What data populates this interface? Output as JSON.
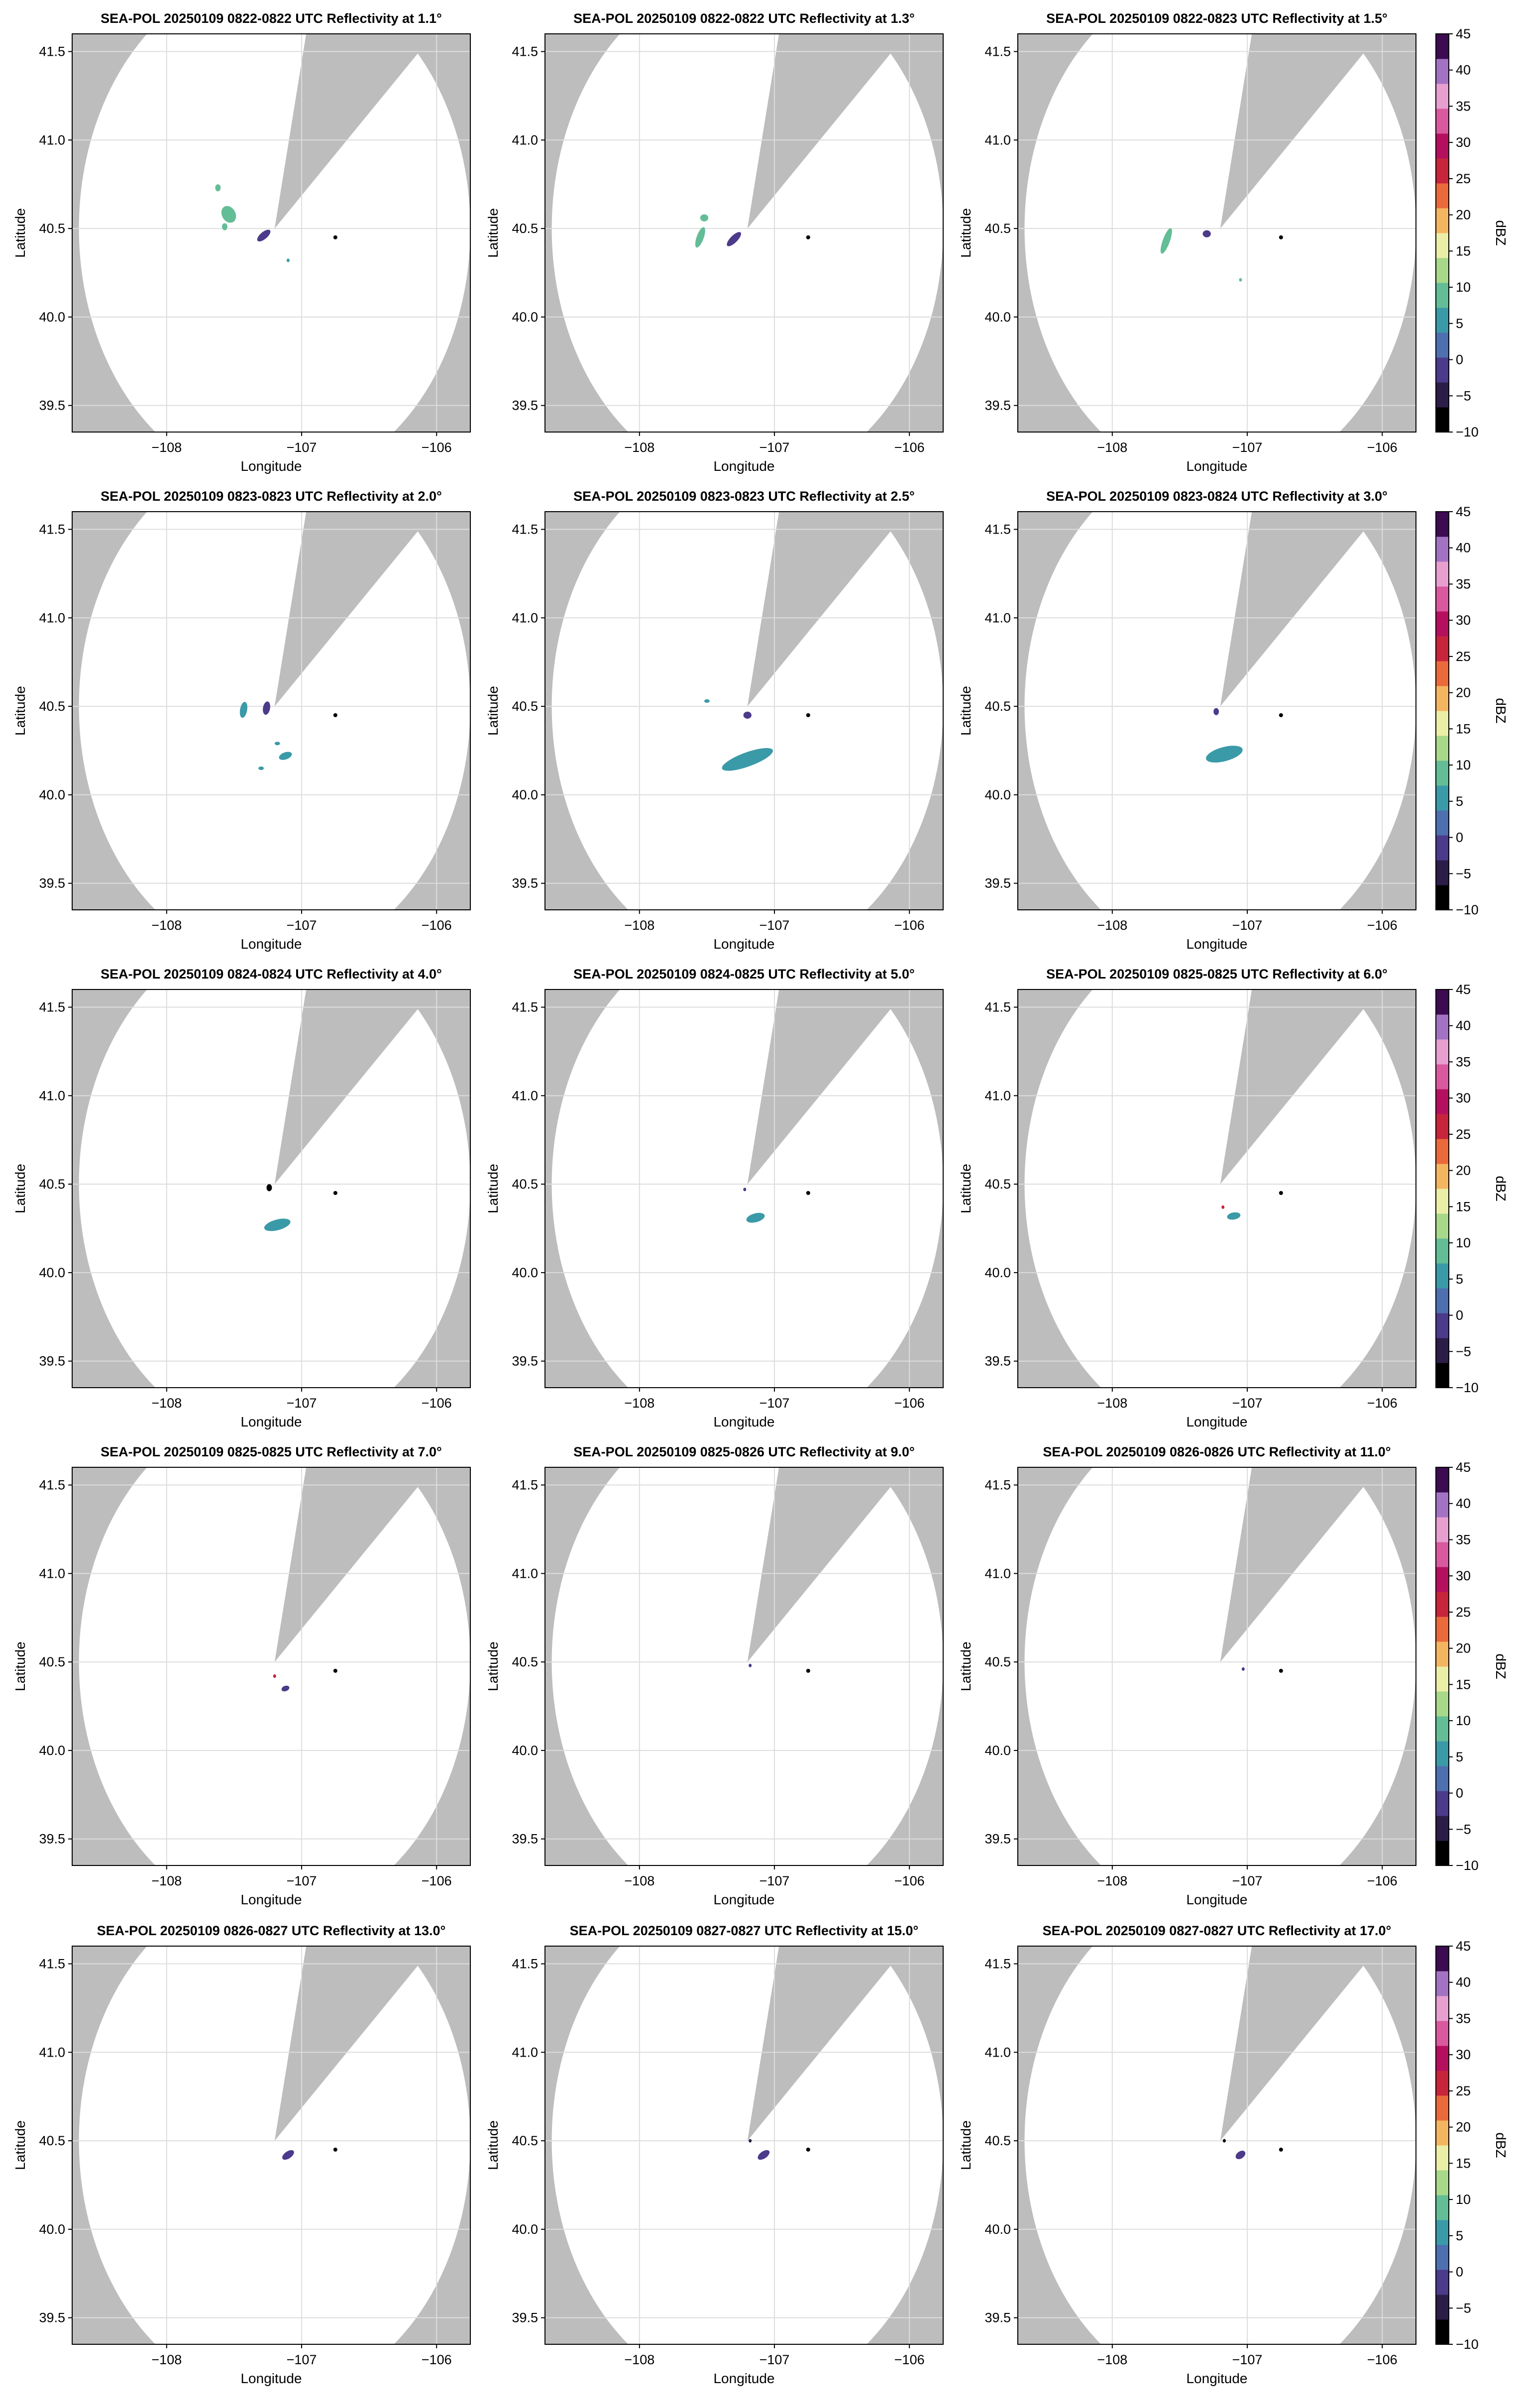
{
  "figure": {
    "radar_site": {
      "lon": -107.2,
      "lat": 40.5
    },
    "marker": {
      "lon": -106.75,
      "lat": 40.45
    },
    "range_radius_deg": 1.45,
    "blocked_sectors_deg_cw_from_north": [
      [
        12,
        47
      ]
    ],
    "colors": {
      "mask": "#bdbdbd",
      "sweep": "#ffffff",
      "grid": "#dddddd",
      "marker": "#000000"
    }
  },
  "chart_data": [
    {
      "type": "heatmap",
      "title": "SEA-POL 20250109 0822-0822 UTC Reflectivity at 1.1°",
      "xlabel": "Longitude",
      "ylabel": "Latitude",
      "xlim": [
        -108.7,
        -105.75
      ],
      "ylim": [
        39.35,
        41.6
      ],
      "xticks": [
        "−108",
        "−107",
        "−106"
      ],
      "yticks": [
        "39.5",
        "40.0",
        "40.5",
        "41.0",
        "41.5"
      ],
      "echoes": [
        {
          "lon": -107.54,
          "lat": 40.58,
          "len": 0.05,
          "wid": 0.05,
          "ang": 30,
          "dbz": 9
        },
        {
          "lon": -107.57,
          "lat": 40.51,
          "len": 0.02,
          "wid": 0.02,
          "ang": 0,
          "dbz": 9
        },
        {
          "lon": -107.62,
          "lat": 40.73,
          "len": 0.02,
          "wid": 0.02,
          "ang": 0,
          "dbz": 9
        },
        {
          "lon": -107.28,
          "lat": 40.46,
          "len": 0.06,
          "wid": 0.02,
          "ang": 40,
          "dbz": 0
        },
        {
          "lon": -107.1,
          "lat": 40.32,
          "len": 0.01,
          "wid": 0.01,
          "ang": 0,
          "dbz": 5
        }
      ]
    },
    {
      "type": "heatmap",
      "title": "SEA-POL 20250109 0822-0822 UTC Reflectivity at 1.3°",
      "xlabel": "Longitude",
      "ylabel": "Latitude",
      "xlim": [
        -108.7,
        -105.75
      ],
      "ylim": [
        39.35,
        41.6
      ],
      "xticks": [
        "−108",
        "−107",
        "−106"
      ],
      "yticks": [
        "39.5",
        "40.0",
        "40.5",
        "41.0",
        "41.5"
      ],
      "echoes": [
        {
          "lon": -107.55,
          "lat": 40.45,
          "len": 0.08,
          "wid": 0.02,
          "ang": 70,
          "dbz": 9
        },
        {
          "lon": -107.52,
          "lat": 40.56,
          "len": 0.03,
          "wid": 0.02,
          "ang": 0,
          "dbz": 9
        },
        {
          "lon": -107.3,
          "lat": 40.44,
          "len": 0.07,
          "wid": 0.02,
          "ang": 45,
          "dbz": 0
        }
      ]
    },
    {
      "type": "heatmap",
      "title": "SEA-POL 20250109 0822-0823 UTC Reflectivity at 1.5°",
      "xlabel": "Longitude",
      "ylabel": "Latitude",
      "xlim": [
        -108.7,
        -105.75
      ],
      "ylim": [
        39.35,
        41.6
      ],
      "xticks": [
        "−108",
        "−107",
        "−106"
      ],
      "yticks": [
        "39.5",
        "40.0",
        "40.5",
        "41.0",
        "41.5"
      ],
      "echoes": [
        {
          "lon": -107.6,
          "lat": 40.43,
          "len": 0.1,
          "wid": 0.02,
          "ang": 70,
          "dbz": 9
        },
        {
          "lon": -107.3,
          "lat": 40.47,
          "len": 0.03,
          "wid": 0.02,
          "ang": 0,
          "dbz": 0
        },
        {
          "lon": -107.05,
          "lat": 40.21,
          "len": 0.01,
          "wid": 0.01,
          "ang": 0,
          "dbz": 9
        }
      ]
    },
    {
      "type": "heatmap",
      "title": "SEA-POL 20250109 0823-0823 UTC Reflectivity at 2.0°",
      "xlabel": "Longitude",
      "ylabel": "Latitude",
      "xlim": [
        -108.7,
        -105.75
      ],
      "ylim": [
        39.35,
        41.6
      ],
      "xticks": [
        "−108",
        "−107",
        "−106"
      ],
      "yticks": [
        "39.5",
        "40.0",
        "40.5",
        "41.0",
        "41.5"
      ],
      "echoes": [
        {
          "lon": -107.43,
          "lat": 40.48,
          "len": 0.06,
          "wid": 0.02,
          "ang": 80,
          "dbz": 6
        },
        {
          "lon": -107.26,
          "lat": 40.49,
          "len": 0.05,
          "wid": 0.02,
          "ang": 80,
          "dbz": 0
        },
        {
          "lon": -107.12,
          "lat": 40.22,
          "len": 0.05,
          "wid": 0.02,
          "ang": 20,
          "dbz": 7
        },
        {
          "lon": -107.18,
          "lat": 40.29,
          "len": 0.02,
          "wid": 0.01,
          "ang": 0,
          "dbz": 7
        },
        {
          "lon": -107.3,
          "lat": 40.15,
          "len": 0.02,
          "wid": 0.01,
          "ang": 0,
          "dbz": 7
        }
      ]
    },
    {
      "type": "heatmap",
      "title": "SEA-POL 20250109 0823-0823 UTC Reflectivity at 2.5°",
      "xlabel": "Longitude",
      "ylabel": "Latitude",
      "xlim": [
        -108.7,
        -105.75
      ],
      "ylim": [
        39.35,
        41.6
      ],
      "xticks": [
        "−108",
        "−107",
        "−106"
      ],
      "yticks": [
        "39.5",
        "40.0",
        "40.5",
        "41.0",
        "41.5"
      ],
      "echoes": [
        {
          "lon": -107.2,
          "lat": 40.2,
          "len": 0.2,
          "wid": 0.04,
          "ang": 20,
          "dbz": 7
        },
        {
          "lon": -107.2,
          "lat": 40.45,
          "len": 0.03,
          "wid": 0.02,
          "ang": 0,
          "dbz": 0
        },
        {
          "lon": -107.5,
          "lat": 40.53,
          "len": 0.02,
          "wid": 0.01,
          "ang": 0,
          "dbz": 7
        }
      ]
    },
    {
      "type": "heatmap",
      "title": "SEA-POL 20250109 0823-0824 UTC Reflectivity at 3.0°",
      "xlabel": "Longitude",
      "ylabel": "Latitude",
      "xlim": [
        -108.7,
        -105.75
      ],
      "ylim": [
        39.35,
        41.6
      ],
      "xticks": [
        "−108",
        "−107",
        "−106"
      ],
      "yticks": [
        "39.5",
        "40.0",
        "40.5",
        "41.0",
        "41.5"
      ],
      "echoes": [
        {
          "lon": -107.17,
          "lat": 40.23,
          "len": 0.14,
          "wid": 0.04,
          "ang": 15,
          "dbz": 7
        },
        {
          "lon": -107.23,
          "lat": 40.47,
          "len": 0.02,
          "wid": 0.02,
          "ang": 0,
          "dbz": 0
        }
      ]
    },
    {
      "type": "heatmap",
      "title": "SEA-POL 20250109 0824-0824 UTC Reflectivity at 4.0°",
      "xlabel": "Longitude",
      "ylabel": "Latitude",
      "xlim": [
        -108.7,
        -105.75
      ],
      "ylim": [
        39.35,
        41.6
      ],
      "xticks": [
        "−108",
        "−107",
        "−106"
      ],
      "yticks": [
        "39.5",
        "40.0",
        "40.5",
        "41.0",
        "41.5"
      ],
      "echoes": [
        {
          "lon": -107.18,
          "lat": 40.27,
          "len": 0.1,
          "wid": 0.03,
          "ang": 15,
          "dbz": 6
        },
        {
          "lon": -107.24,
          "lat": 40.48,
          "len": 0.02,
          "wid": 0.02,
          "ang": 0,
          "dbz": -8
        }
      ]
    },
    {
      "type": "heatmap",
      "title": "SEA-POL 20250109 0824-0825 UTC Reflectivity at 5.0°",
      "xlabel": "Longitude",
      "ylabel": "Latitude",
      "xlim": [
        -108.7,
        -105.75
      ],
      "ylim": [
        39.35,
        41.6
      ],
      "xticks": [
        "−108",
        "−107",
        "−106"
      ],
      "yticks": [
        "39.5",
        "40.0",
        "40.5",
        "41.0",
        "41.5"
      ],
      "echoes": [
        {
          "lon": -107.14,
          "lat": 40.31,
          "len": 0.07,
          "wid": 0.025,
          "ang": 15,
          "dbz": 5
        },
        {
          "lon": -107.22,
          "lat": 40.47,
          "len": 0.01,
          "wid": 0.01,
          "ang": 0,
          "dbz": 0
        }
      ]
    },
    {
      "type": "heatmap",
      "title": "SEA-POL 20250109 0825-0825 UTC Reflectivity at 6.0°",
      "xlabel": "Longitude",
      "ylabel": "Latitude",
      "xlim": [
        -108.7,
        -105.75
      ],
      "ylim": [
        39.35,
        41.6
      ],
      "xticks": [
        "−108",
        "−107",
        "−106"
      ],
      "yticks": [
        "39.5",
        "40.0",
        "40.5",
        "41.0",
        "41.5"
      ],
      "echoes": [
        {
          "lon": -107.1,
          "lat": 40.32,
          "len": 0.05,
          "wid": 0.02,
          "ang": 10,
          "dbz": 4
        },
        {
          "lon": -107.18,
          "lat": 40.37,
          "len": 0.01,
          "wid": 0.01,
          "ang": 0,
          "dbz": 25
        }
      ]
    },
    {
      "type": "heatmap",
      "title": "SEA-POL 20250109 0825-0825 UTC Reflectivity at 7.0°",
      "xlabel": "Longitude",
      "ylabel": "Latitude",
      "xlim": [
        -108.7,
        -105.75
      ],
      "ylim": [
        39.35,
        41.6
      ],
      "xticks": [
        "−108",
        "−107",
        "−106"
      ],
      "yticks": [
        "39.5",
        "40.0",
        "40.5",
        "41.0",
        "41.5"
      ],
      "echoes": [
        {
          "lon": -107.12,
          "lat": 40.35,
          "len": 0.03,
          "wid": 0.015,
          "ang": 20,
          "dbz": 0
        },
        {
          "lon": -107.2,
          "lat": 40.42,
          "len": 0.01,
          "wid": 0.01,
          "ang": 0,
          "dbz": 25
        }
      ]
    },
    {
      "type": "heatmap",
      "title": "SEA-POL 20250109 0825-0826 UTC Reflectivity at 9.0°",
      "xlabel": "Longitude",
      "ylabel": "Latitude",
      "xlim": [
        -108.7,
        -105.75
      ],
      "ylim": [
        39.35,
        41.6
      ],
      "xticks": [
        "−108",
        "−107",
        "−106"
      ],
      "yticks": [
        "39.5",
        "40.0",
        "40.5",
        "41.0",
        "41.5"
      ],
      "echoes": [
        {
          "lon": -107.18,
          "lat": 40.48,
          "len": 0.01,
          "wid": 0.01,
          "ang": 0,
          "dbz": 0
        }
      ]
    },
    {
      "type": "heatmap",
      "title": "SEA-POL 20250109 0826-0826 UTC Reflectivity at 11.0°",
      "xlabel": "Longitude",
      "ylabel": "Latitude",
      "xlim": [
        -108.7,
        -105.75
      ],
      "ylim": [
        39.35,
        41.6
      ],
      "xticks": [
        "−108",
        "−107",
        "−106"
      ],
      "yticks": [
        "39.5",
        "40.0",
        "40.5",
        "41.0",
        "41.5"
      ],
      "echoes": [
        {
          "lon": -107.03,
          "lat": 40.46,
          "len": 0.01,
          "wid": 0.01,
          "ang": 0,
          "dbz": 0
        }
      ]
    },
    {
      "type": "heatmap",
      "title": "SEA-POL 20250109 0826-0827 UTC Reflectivity at 13.0°",
      "xlabel": "Longitude",
      "ylabel": "Latitude",
      "xlim": [
        -108.7,
        -105.75
      ],
      "ylim": [
        39.35,
        41.6
      ],
      "xticks": [
        "−108",
        "−107",
        "−106"
      ],
      "yticks": [
        "39.5",
        "40.0",
        "40.5",
        "41.0",
        "41.5"
      ],
      "echoes": [
        {
          "lon": -107.1,
          "lat": 40.42,
          "len": 0.05,
          "wid": 0.02,
          "ang": 35,
          "dbz": 0
        }
      ]
    },
    {
      "type": "heatmap",
      "title": "SEA-POL 20250109 0827-0827 UTC Reflectivity at 15.0°",
      "xlabel": "Longitude",
      "ylabel": "Latitude",
      "xlim": [
        -108.7,
        -105.75
      ],
      "ylim": [
        39.35,
        41.6
      ],
      "xticks": [
        "−108",
        "−107",
        "−106"
      ],
      "yticks": [
        "39.5",
        "40.0",
        "40.5",
        "41.0",
        "41.5"
      ],
      "echoes": [
        {
          "lon": -107.08,
          "lat": 40.42,
          "len": 0.05,
          "wid": 0.02,
          "ang": 35,
          "dbz": 0
        },
        {
          "lon": -107.18,
          "lat": 40.5,
          "len": 0.01,
          "wid": 0.01,
          "ang": 0,
          "dbz": -5
        }
      ]
    },
    {
      "type": "heatmap",
      "title": "SEA-POL 20250109 0827-0827 UTC Reflectivity at 17.0°",
      "xlabel": "Longitude",
      "ylabel": "Latitude",
      "xlim": [
        -108.7,
        -105.75
      ],
      "ylim": [
        39.35,
        41.6
      ],
      "xticks": [
        "−108",
        "−107",
        "−106"
      ],
      "yticks": [
        "39.5",
        "40.0",
        "40.5",
        "41.0",
        "41.5"
      ],
      "echoes": [
        {
          "lon": -107.05,
          "lat": 40.42,
          "len": 0.04,
          "wid": 0.02,
          "ang": 35,
          "dbz": 0
        },
        {
          "lon": -107.17,
          "lat": 40.5,
          "len": 0.01,
          "wid": 0.01,
          "ang": 0,
          "dbz": -8
        }
      ]
    }
  ],
  "colorbar": {
    "label": "dBZ",
    "vmin": -10,
    "vmax": 45,
    "ticks": [
      "45",
      "40",
      "35",
      "30",
      "25",
      "20",
      "15",
      "10",
      "5",
      "0",
      "−5",
      "−10"
    ],
    "colors": [
      "#000000",
      "#2b1d48",
      "#4c3a8a",
      "#4e6fb0",
      "#3a9aa8",
      "#63bd96",
      "#a8d88a",
      "#eaeea6",
      "#f4b560",
      "#ea6a3c",
      "#c8243c",
      "#b5105e",
      "#d9599f",
      "#e79fd0",
      "#a372c3",
      "#3d0b52"
    ]
  }
}
